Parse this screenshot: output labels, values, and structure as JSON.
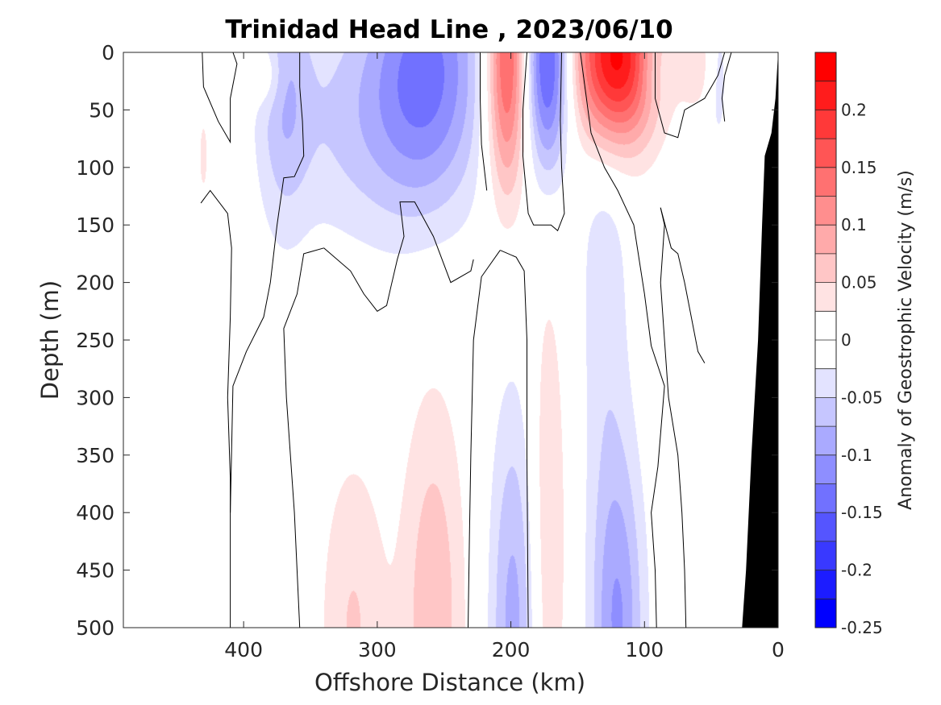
{
  "chart_data": {
    "type": "heatmap",
    "subtype": "filled-contour-section",
    "title": "Trinidad Head Line , 2023/06/10",
    "xlabel": "Offshore Distance (km)",
    "ylabel": "Depth (m)",
    "xlim": [
      490,
      0
    ],
    "xdirection": "reversed",
    "ylim": [
      0,
      500
    ],
    "ydirection": "reversed",
    "xticks": [
      400,
      300,
      200,
      100,
      0
    ],
    "yticks": [
      0,
      50,
      100,
      150,
      200,
      250,
      300,
      350,
      400,
      450,
      500
    ],
    "colorbar": {
      "label": "Anomaly of Geostrophic Velocity (m/s)",
      "range": [
        -0.25,
        0.25
      ],
      "levels": [
        -0.25,
        -0.225,
        -0.2,
        -0.175,
        -0.15,
        -0.125,
        -0.1,
        -0.075,
        -0.05,
        -0.025,
        0,
        0.025,
        0.05,
        0.075,
        0.1,
        0.125,
        0.15,
        0.175,
        0.2,
        0.225,
        0.25
      ],
      "ticks": [
        -0.25,
        -0.2,
        -0.15,
        -0.1,
        -0.05,
        0,
        0.05,
        0.1,
        0.15,
        0.2
      ],
      "tick_labels": [
        "-0.25",
        "-0.2",
        "-0.15",
        "-0.1",
        "-0.05",
        "0",
        "0.05",
        "0.1",
        "0.15",
        "0.2"
      ],
      "colormap": "blue-white-red",
      "neg_color": "#0000ff",
      "pos_color": "#ff0000"
    },
    "features": [
      {
        "kind": "positive",
        "x": 122,
        "z": 5,
        "sx": 22,
        "sz": 55,
        "amp": 0.245
      },
      {
        "kind": "positive",
        "x": 203,
        "z": 10,
        "sx": 11,
        "sz": 80,
        "amp": 0.17
      },
      {
        "kind": "negative",
        "x": 172,
        "z": 10,
        "sx": 12,
        "sz": 65,
        "amp": -0.17
      },
      {
        "kind": "negative",
        "x": 262,
        "z": 15,
        "sx": 30,
        "sz": 85,
        "amp": -0.125
      },
      {
        "kind": "negative",
        "x": 318,
        "z": 60,
        "sx": 40,
        "sz": 75,
        "amp": -0.05
      },
      {
        "kind": "negative",
        "x": 370,
        "z": 30,
        "sx": 14,
        "sz": 90,
        "amp": -0.06
      },
      {
        "kind": "negative",
        "x": 120,
        "z": 500,
        "sx": 14,
        "sz": 110,
        "amp": -0.1
      },
      {
        "kind": "negative",
        "x": 130,
        "z": 200,
        "sx": 14,
        "sz": 150,
        "amp": -0.04
      },
      {
        "kind": "negative",
        "x": 198,
        "z": 500,
        "sx": 13,
        "sz": 140,
        "amp": -0.085
      },
      {
        "kind": "positive",
        "x": 258,
        "z": 490,
        "sx": 17,
        "sz": 140,
        "amp": 0.07
      },
      {
        "kind": "positive",
        "x": 172,
        "z": 420,
        "sx": 10,
        "sz": 160,
        "amp": 0.055
      },
      {
        "kind": "positive",
        "x": 318,
        "z": 500,
        "sx": 18,
        "sz": 110,
        "amp": 0.052
      },
      {
        "kind": "negative",
        "x": 45,
        "z": 20,
        "sx": 6,
        "sz": 50,
        "amp": -0.04
      },
      {
        "kind": "positive",
        "x": 60,
        "z": 10,
        "sx": 10,
        "sz": 30,
        "amp": 0.04
      },
      {
        "kind": "positive",
        "x": 430,
        "z": 90,
        "sx": 3,
        "sz": 30,
        "amp": 0.035
      },
      {
        "kind": "positive",
        "x": 382,
        "z": 20,
        "sx": 8,
        "sz": 20,
        "amp": 0.04
      },
      {
        "kind": "negative",
        "x": 95,
        "z": 10,
        "sx": 8,
        "sz": 25,
        "amp": -0.035
      }
    ],
    "zero_contours": [
      {
        "name": "c1",
        "points": [
          [
            431,
            0
          ],
          [
            430,
            30
          ],
          [
            419,
            60
          ],
          [
            410,
            78
          ],
          [
            410,
            40
          ],
          [
            405,
            10
          ],
          [
            408,
            0
          ]
        ]
      },
      {
        "name": "c2",
        "points": [
          [
            432,
            131
          ],
          [
            425,
            120
          ],
          [
            412,
            140
          ],
          [
            409,
            170
          ],
          [
            410,
            230
          ],
          [
            412,
            300
          ],
          [
            410,
            370
          ],
          [
            410,
            450
          ],
          [
            410,
            500
          ]
        ]
      },
      {
        "name": "c3",
        "points": [
          [
            358,
            0
          ],
          [
            358,
            30
          ],
          [
            356,
            60
          ],
          [
            355,
            90
          ],
          [
            362,
            108
          ],
          [
            370,
            109
          ],
          [
            375,
            150
          ],
          [
            380,
            200
          ],
          [
            385,
            230
          ],
          [
            398,
            260
          ],
          [
            408,
            290
          ],
          [
            410,
            400
          ]
        ]
      },
      {
        "name": "c4",
        "points": [
          [
            340,
            170
          ],
          [
            355,
            175
          ],
          [
            360,
            210
          ],
          [
            370,
            240
          ],
          [
            368,
            300
          ],
          [
            362,
            400
          ],
          [
            358,
            500
          ]
        ]
      },
      {
        "name": "c5",
        "points": [
          [
            340,
            170
          ],
          [
            320,
            190
          ],
          [
            310,
            210
          ],
          [
            300,
            225
          ],
          [
            293,
            220
          ],
          [
            290,
            205
          ],
          [
            285,
            180
          ],
          [
            280,
            160
          ],
          [
            283,
            130
          ],
          [
            272,
            130
          ],
          [
            258,
            160
          ],
          [
            245,
            200
          ],
          [
            230,
            190
          ],
          [
            228,
            180
          ]
        ]
      },
      {
        "name": "c6",
        "points": [
          [
            208,
            172
          ],
          [
            222,
            195
          ],
          [
            228,
            250
          ],
          [
            230,
            350
          ],
          [
            231,
            420
          ],
          [
            232,
            500
          ]
        ]
      },
      {
        "name": "c7",
        "points": [
          [
            208,
            172
          ],
          [
            196,
            178
          ],
          [
            190,
            190
          ],
          [
            188,
            250
          ],
          [
            188,
            350
          ],
          [
            187,
            500
          ]
        ]
      },
      {
        "name": "c8",
        "points": [
          [
            188,
            0
          ],
          [
            191,
            50
          ],
          [
            191,
            90
          ],
          [
            187,
            140
          ],
          [
            183,
            150
          ],
          [
            176,
            150
          ],
          [
            170,
            150
          ],
          [
            165,
            155
          ],
          [
            160,
            140
          ],
          [
            162,
            100
          ],
          [
            163,
            60
          ],
          [
            162,
            0
          ]
        ]
      },
      {
        "name": "c9",
        "points": [
          [
            223,
            0
          ],
          [
            223,
            40
          ],
          [
            222,
            80
          ],
          [
            218,
            120
          ]
        ]
      },
      {
        "name": "c10",
        "points": [
          [
            148,
            0
          ],
          [
            140,
            70
          ],
          [
            130,
            100
          ],
          [
            120,
            120
          ],
          [
            108,
            150
          ],
          [
            100,
            210
          ],
          [
            95,
            255
          ],
          [
            85,
            290
          ],
          [
            90,
            360
          ],
          [
            95,
            400
          ],
          [
            92,
            450
          ],
          [
            91,
            500
          ]
        ]
      },
      {
        "name": "c11",
        "points": [
          [
            92,
            0
          ],
          [
            92,
            40
          ],
          [
            85,
            70
          ],
          [
            75,
            74
          ],
          [
            70,
            50
          ],
          [
            55,
            40
          ],
          [
            45,
            20
          ],
          [
            40,
            0
          ]
        ]
      },
      {
        "name": "c12",
        "points": [
          [
            88,
            135
          ],
          [
            85,
            150
          ],
          [
            88,
            200
          ],
          [
            85,
            250
          ],
          [
            82,
            300
          ],
          [
            75,
            350
          ],
          [
            72,
            400
          ],
          [
            70,
            450
          ],
          [
            69,
            500
          ]
        ]
      },
      {
        "name": "c13",
        "points": [
          [
            88,
            135
          ],
          [
            80,
            170
          ],
          [
            75,
            175
          ],
          [
            70,
            200
          ],
          [
            65,
            230
          ],
          [
            60,
            260
          ],
          [
            55,
            270
          ]
        ]
      },
      {
        "name": "c14",
        "points": [
          [
            35,
            0
          ],
          [
            40,
            20
          ],
          [
            42,
            40
          ],
          [
            40,
            60
          ]
        ]
      }
    ],
    "bathymetry": {
      "name": "seafloor",
      "points": [
        [
          0,
          0
        ],
        [
          2,
          40
        ],
        [
          5,
          70
        ],
        [
          10,
          90
        ],
        [
          12,
          150
        ],
        [
          15,
          250
        ],
        [
          20,
          350
        ],
        [
          24,
          450
        ],
        [
          27,
          500
        ],
        [
          0,
          500
        ]
      ],
      "color": "#000000"
    }
  }
}
